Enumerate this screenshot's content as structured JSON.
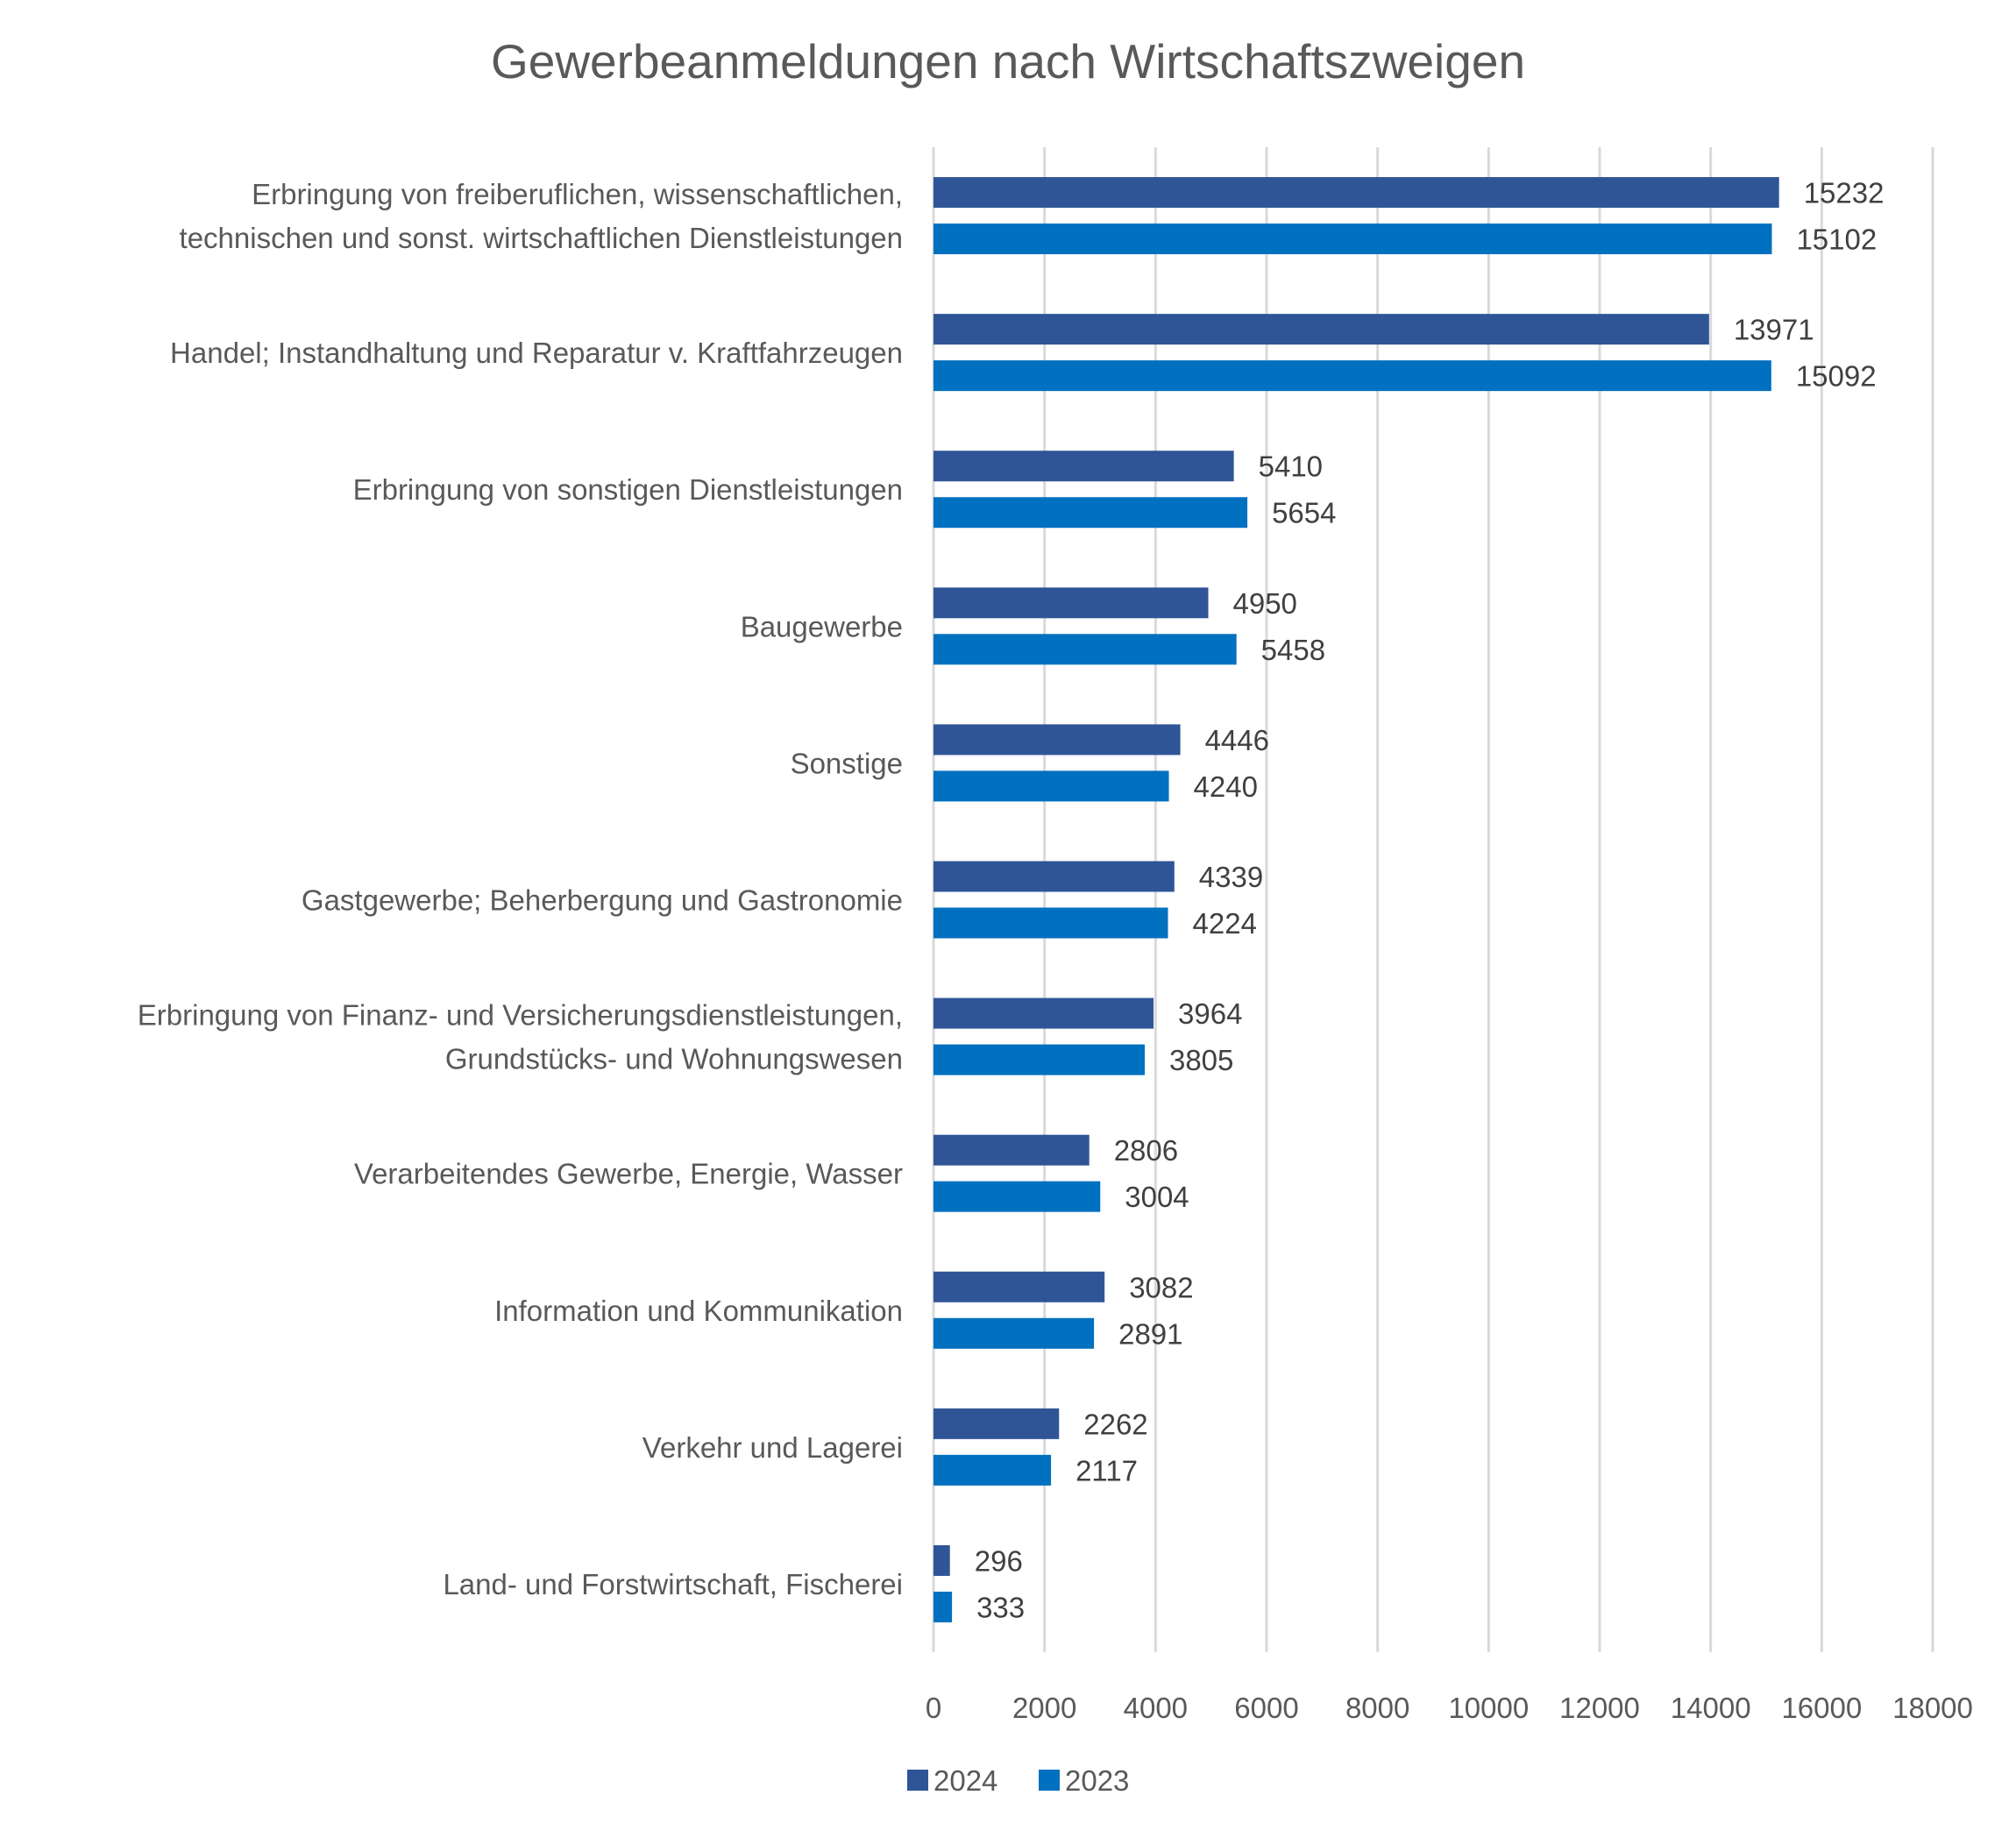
{
  "chart_data": {
    "type": "bar",
    "orientation": "horizontal",
    "title": "Gewerbeanmeldungen nach Wirtschaftszweigen",
    "categories": [
      [
        "Erbringung von freiberuflichen, wissenschaftlichen,",
        "technischen und sonst. wirtschaftlichen Dienstleistungen"
      ],
      [
        "Handel; Instandhaltung und Reparatur v. Kraftfahrzeugen"
      ],
      [
        "Erbringung von sonstigen Dienstleistungen"
      ],
      [
        "Baugewerbe"
      ],
      [
        "Sonstige"
      ],
      [
        "Gastgewerbe; Beherbergung und Gastronomie"
      ],
      [
        "Erbringung von Finanz- und Versicherungsdienstleistungen,",
        "Grundstücks- und Wohnungswesen"
      ],
      [
        "Verarbeitendes Gewerbe, Energie, Wasser"
      ],
      [
        "Information und Kommunikation"
      ],
      [
        "Verkehr und Lagerei"
      ],
      [
        "Land- und Forstwirtschaft, Fischerei"
      ]
    ],
    "series": [
      {
        "name": "2024",
        "color": "#2f5597",
        "values": [
          15232,
          13971,
          5410,
          4950,
          4446,
          4339,
          3964,
          2806,
          3082,
          2262,
          296
        ]
      },
      {
        "name": "2023",
        "color": "#0070c0",
        "values": [
          15102,
          15092,
          5654,
          5458,
          4240,
          4224,
          3805,
          3004,
          2891,
          2117,
          333
        ]
      }
    ],
    "xlim": [
      0,
      18000
    ],
    "xticks": [
      "0",
      "2000",
      "4000",
      "6000",
      "8000",
      "10000",
      "12000",
      "14000",
      "16000",
      "18000"
    ],
    "grid": true,
    "data_labels": true,
    "legend_position": "bottom"
  }
}
